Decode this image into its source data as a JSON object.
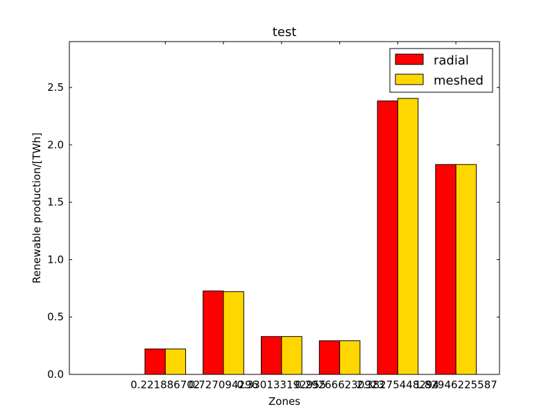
{
  "chart_data": {
    "type": "bar",
    "title": "test",
    "xlabel": "Zones",
    "ylabel": "Renewable production/[TWh]",
    "ylim": [
      0,
      2.9
    ],
    "xlim": [
      -0.3,
      7.1
    ],
    "yticks": [
      "0.0",
      "0.5",
      "1.0",
      "1.5",
      "2.0",
      "2.5"
    ],
    "ytick_values": [
      0,
      0.5,
      1.0,
      1.5,
      2.0,
      2.5
    ],
    "categories": [
      "0.221886702",
      "0.727094296",
      "0.330133192955",
      "0.292666230923",
      "2.38275448294",
      "1.82946225587"
    ],
    "x": [
      1,
      2,
      3,
      4,
      5,
      6
    ],
    "bar_width": 0.35,
    "series": [
      {
        "name": "radial",
        "color": "#ff0000",
        "values": [
          0.222,
          0.727,
          0.33,
          0.293,
          2.383,
          1.829
        ]
      },
      {
        "name": "meshed",
        "color": "#ffd700",
        "values": [
          0.222,
          0.721,
          0.33,
          0.293,
          2.405,
          1.829
        ]
      }
    ],
    "grid": false,
    "legend": "top-right"
  }
}
